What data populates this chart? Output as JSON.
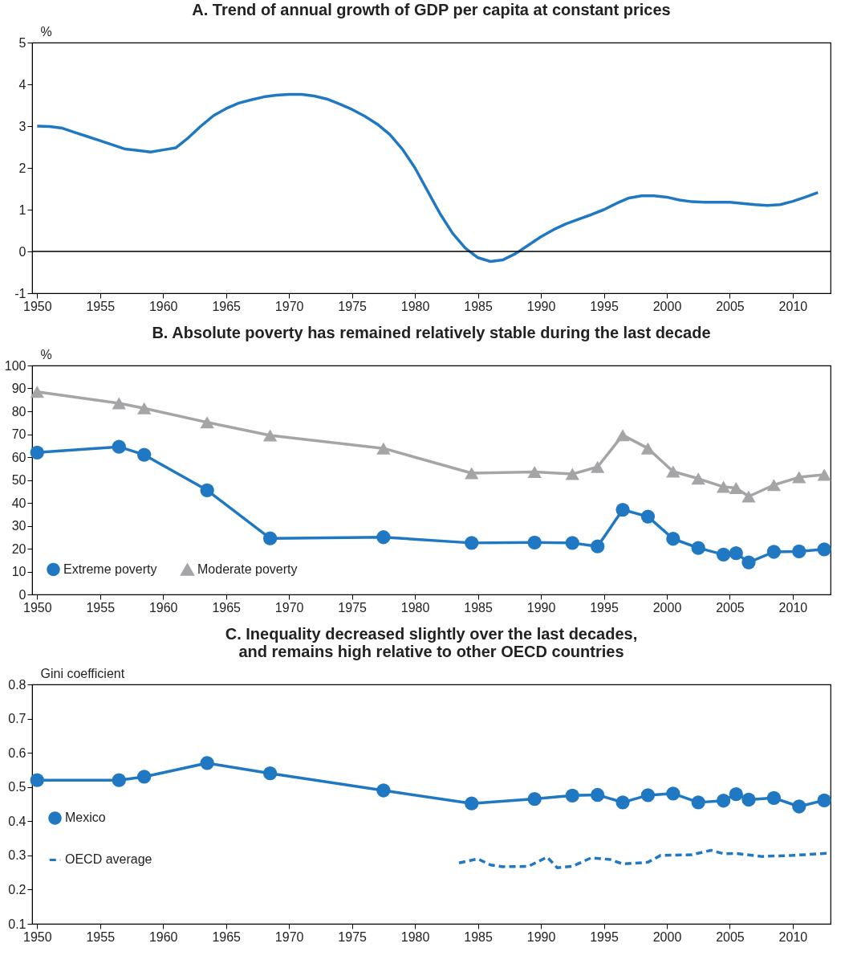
{
  "chart_data": [
    {
      "type": "line",
      "title": "A. Trend of annual growth of GDP per capita at constant prices",
      "ylabel": "%",
      "xlim": [
        1949.6,
        2013
      ],
      "xticks": [
        1950,
        1955,
        1960,
        1965,
        1970,
        1975,
        1980,
        1985,
        1990,
        1995,
        2000,
        2005,
        2010
      ],
      "ylim": [
        -1,
        5
      ],
      "yticks": [
        -1,
        0,
        1,
        2,
        3,
        4,
        5
      ],
      "grid": false,
      "legend": false,
      "marker": "none",
      "line_style": "solid",
      "ref_lines": [
        {
          "axis": "y",
          "value": 0,
          "color": "#000000"
        }
      ],
      "series": [
        {
          "color": "#1f78c1",
          "x": [
            1950,
            1951,
            1952,
            1953,
            1954,
            1955,
            1956,
            1957,
            1958,
            1959,
            1960,
            1961,
            1962,
            1963,
            1964,
            1965,
            1966,
            1967,
            1968,
            1969,
            1970,
            1971,
            1972,
            1973,
            1974,
            1975,
            1976,
            1977,
            1978,
            1979,
            1980,
            1981,
            1982,
            1983,
            1984,
            1985,
            1986,
            1987,
            1988,
            1989,
            1990,
            1991,
            1992,
            1993,
            1994,
            1995,
            1996,
            1997,
            1998,
            1999,
            2000,
            2001,
            2002,
            2003,
            2004,
            2005,
            2006,
            2007,
            2008,
            2009,
            2010,
            2011,
            2012
          ],
          "values": [
            3.0,
            2.99,
            2.95,
            2.85,
            2.75,
            2.65,
            2.55,
            2.45,
            2.42,
            2.38,
            2.43,
            2.48,
            2.72,
            3.0,
            3.25,
            3.42,
            3.55,
            3.63,
            3.7,
            3.74,
            3.76,
            3.76,
            3.72,
            3.65,
            3.53,
            3.4,
            3.24,
            3.05,
            2.8,
            2.45,
            2.0,
            1.45,
            0.9,
            0.43,
            0.08,
            -0.15,
            -0.24,
            -0.2,
            -0.05,
            0.15,
            0.35,
            0.52,
            0.66,
            0.77,
            0.88,
            1.0,
            1.15,
            1.28,
            1.33,
            1.33,
            1.3,
            1.23,
            1.19,
            1.18,
            1.18,
            1.18,
            1.15,
            1.12,
            1.1,
            1.12,
            1.2,
            1.3,
            1.41
          ]
        }
      ]
    },
    {
      "type": "line",
      "title": "B. Absolute poverty has remained relatively stable during the last decade",
      "ylabel": "%",
      "xlim": [
        1949.6,
        2013
      ],
      "xticks": [
        1950,
        1955,
        1960,
        1965,
        1970,
        1975,
        1980,
        1985,
        1990,
        1995,
        2000,
        2005,
        2010
      ],
      "ylim": [
        0,
        100
      ],
      "yticks": [
        0,
        10,
        20,
        30,
        40,
        50,
        60,
        70,
        80,
        90,
        100
      ],
      "grid": false,
      "legend": "bottom left",
      "series": [
        {
          "name": "Extreme poverty",
          "color": "#1f78c1",
          "marker": "circle",
          "line_style": "solid",
          "x": [
            1950,
            1956.5,
            1958.5,
            1963.5,
            1968.5,
            1977.5,
            1984.5,
            1989.5,
            1992.5,
            1994.5,
            1996.5,
            1998.5,
            2000.5,
            2002.5,
            2004.5,
            2005.5,
            2006.5,
            2008.5,
            2010.5,
            2012.5
          ],
          "values": [
            62,
            64.5,
            61,
            45.5,
            24.5,
            25,
            22.5,
            22.7,
            22.5,
            21,
            37,
            34,
            24.3,
            20.3,
            17.4,
            18,
            14,
            18.6,
            18.8,
            19.7
          ]
        },
        {
          "name": "Moderate poverty",
          "color": "#a5a5a8",
          "marker": "triangle",
          "line_style": "solid",
          "x": [
            1950,
            1956.5,
            1958.5,
            1963.5,
            1968.5,
            1977.5,
            1984.5,
            1989.5,
            1992.5,
            1994.5,
            1996.5,
            1998.5,
            2000.5,
            2002.5,
            2004.5,
            2005.5,
            2006.5,
            2008.5,
            2010.5,
            2012.5
          ],
          "values": [
            88.5,
            83.5,
            81.3,
            75.2,
            69.5,
            63.8,
            53,
            53.5,
            52.6,
            55.7,
            69.6,
            63.8,
            53.7,
            50.6,
            47,
            46.5,
            42.8,
            47.8,
            51.2,
            52.3
          ]
        }
      ]
    },
    {
      "type": "line",
      "title": "C. Inequality decreased slightly over the last decades,\nand remains high relative to other OECD countries",
      "ylabel": "Gini coefficient",
      "xlim": [
        1949.6,
        2013
      ],
      "xticks": [
        1950,
        1955,
        1960,
        1965,
        1970,
        1975,
        1980,
        1985,
        1990,
        1995,
        2000,
        2005,
        2010
      ],
      "ylim": [
        0.1,
        0.8
      ],
      "yticks": [
        0.1,
        0.2,
        0.3,
        0.4,
        0.5,
        0.6,
        0.7,
        0.8
      ],
      "grid": false,
      "legend": "left",
      "series": [
        {
          "name": "Mexico",
          "color": "#1f78c1",
          "marker": "circle",
          "line_style": "solid",
          "x": [
            1950,
            1956.5,
            1958.5,
            1963.5,
            1968.5,
            1977.5,
            1984.5,
            1989.5,
            1992.5,
            1994.5,
            1996.5,
            1998.5,
            2000.5,
            2002.5,
            2004.5,
            2005.5,
            2006.5,
            2008.5,
            2010.5,
            2012.5
          ],
          "values": [
            0.52,
            0.52,
            0.53,
            0.57,
            0.54,
            0.49,
            0.452,
            0.465,
            0.475,
            0.477,
            0.455,
            0.476,
            0.481,
            0.455,
            0.46,
            0.479,
            0.463,
            0.468,
            0.443,
            0.461
          ]
        },
        {
          "name": "OECD average",
          "color": "#1f78c1",
          "marker": "none",
          "line_style": "dashed",
          "x": [
            1983.5,
            1985,
            1986,
            1987,
            1989,
            1990.5,
            1991.3,
            1992.5,
            1994,
            1995.5,
            1996.5,
            1998.5,
            1999.5,
            2002,
            2003.5,
            2004.5,
            2005.5,
            2007.5,
            2010,
            2012.7
          ],
          "values": [
            0.278,
            0.29,
            0.272,
            0.267,
            0.268,
            0.295,
            0.264,
            0.268,
            0.293,
            0.288,
            0.275,
            0.28,
            0.3,
            0.302,
            0.315,
            0.305,
            0.306,
            0.297,
            0.3,
            0.306
          ]
        }
      ]
    }
  ]
}
